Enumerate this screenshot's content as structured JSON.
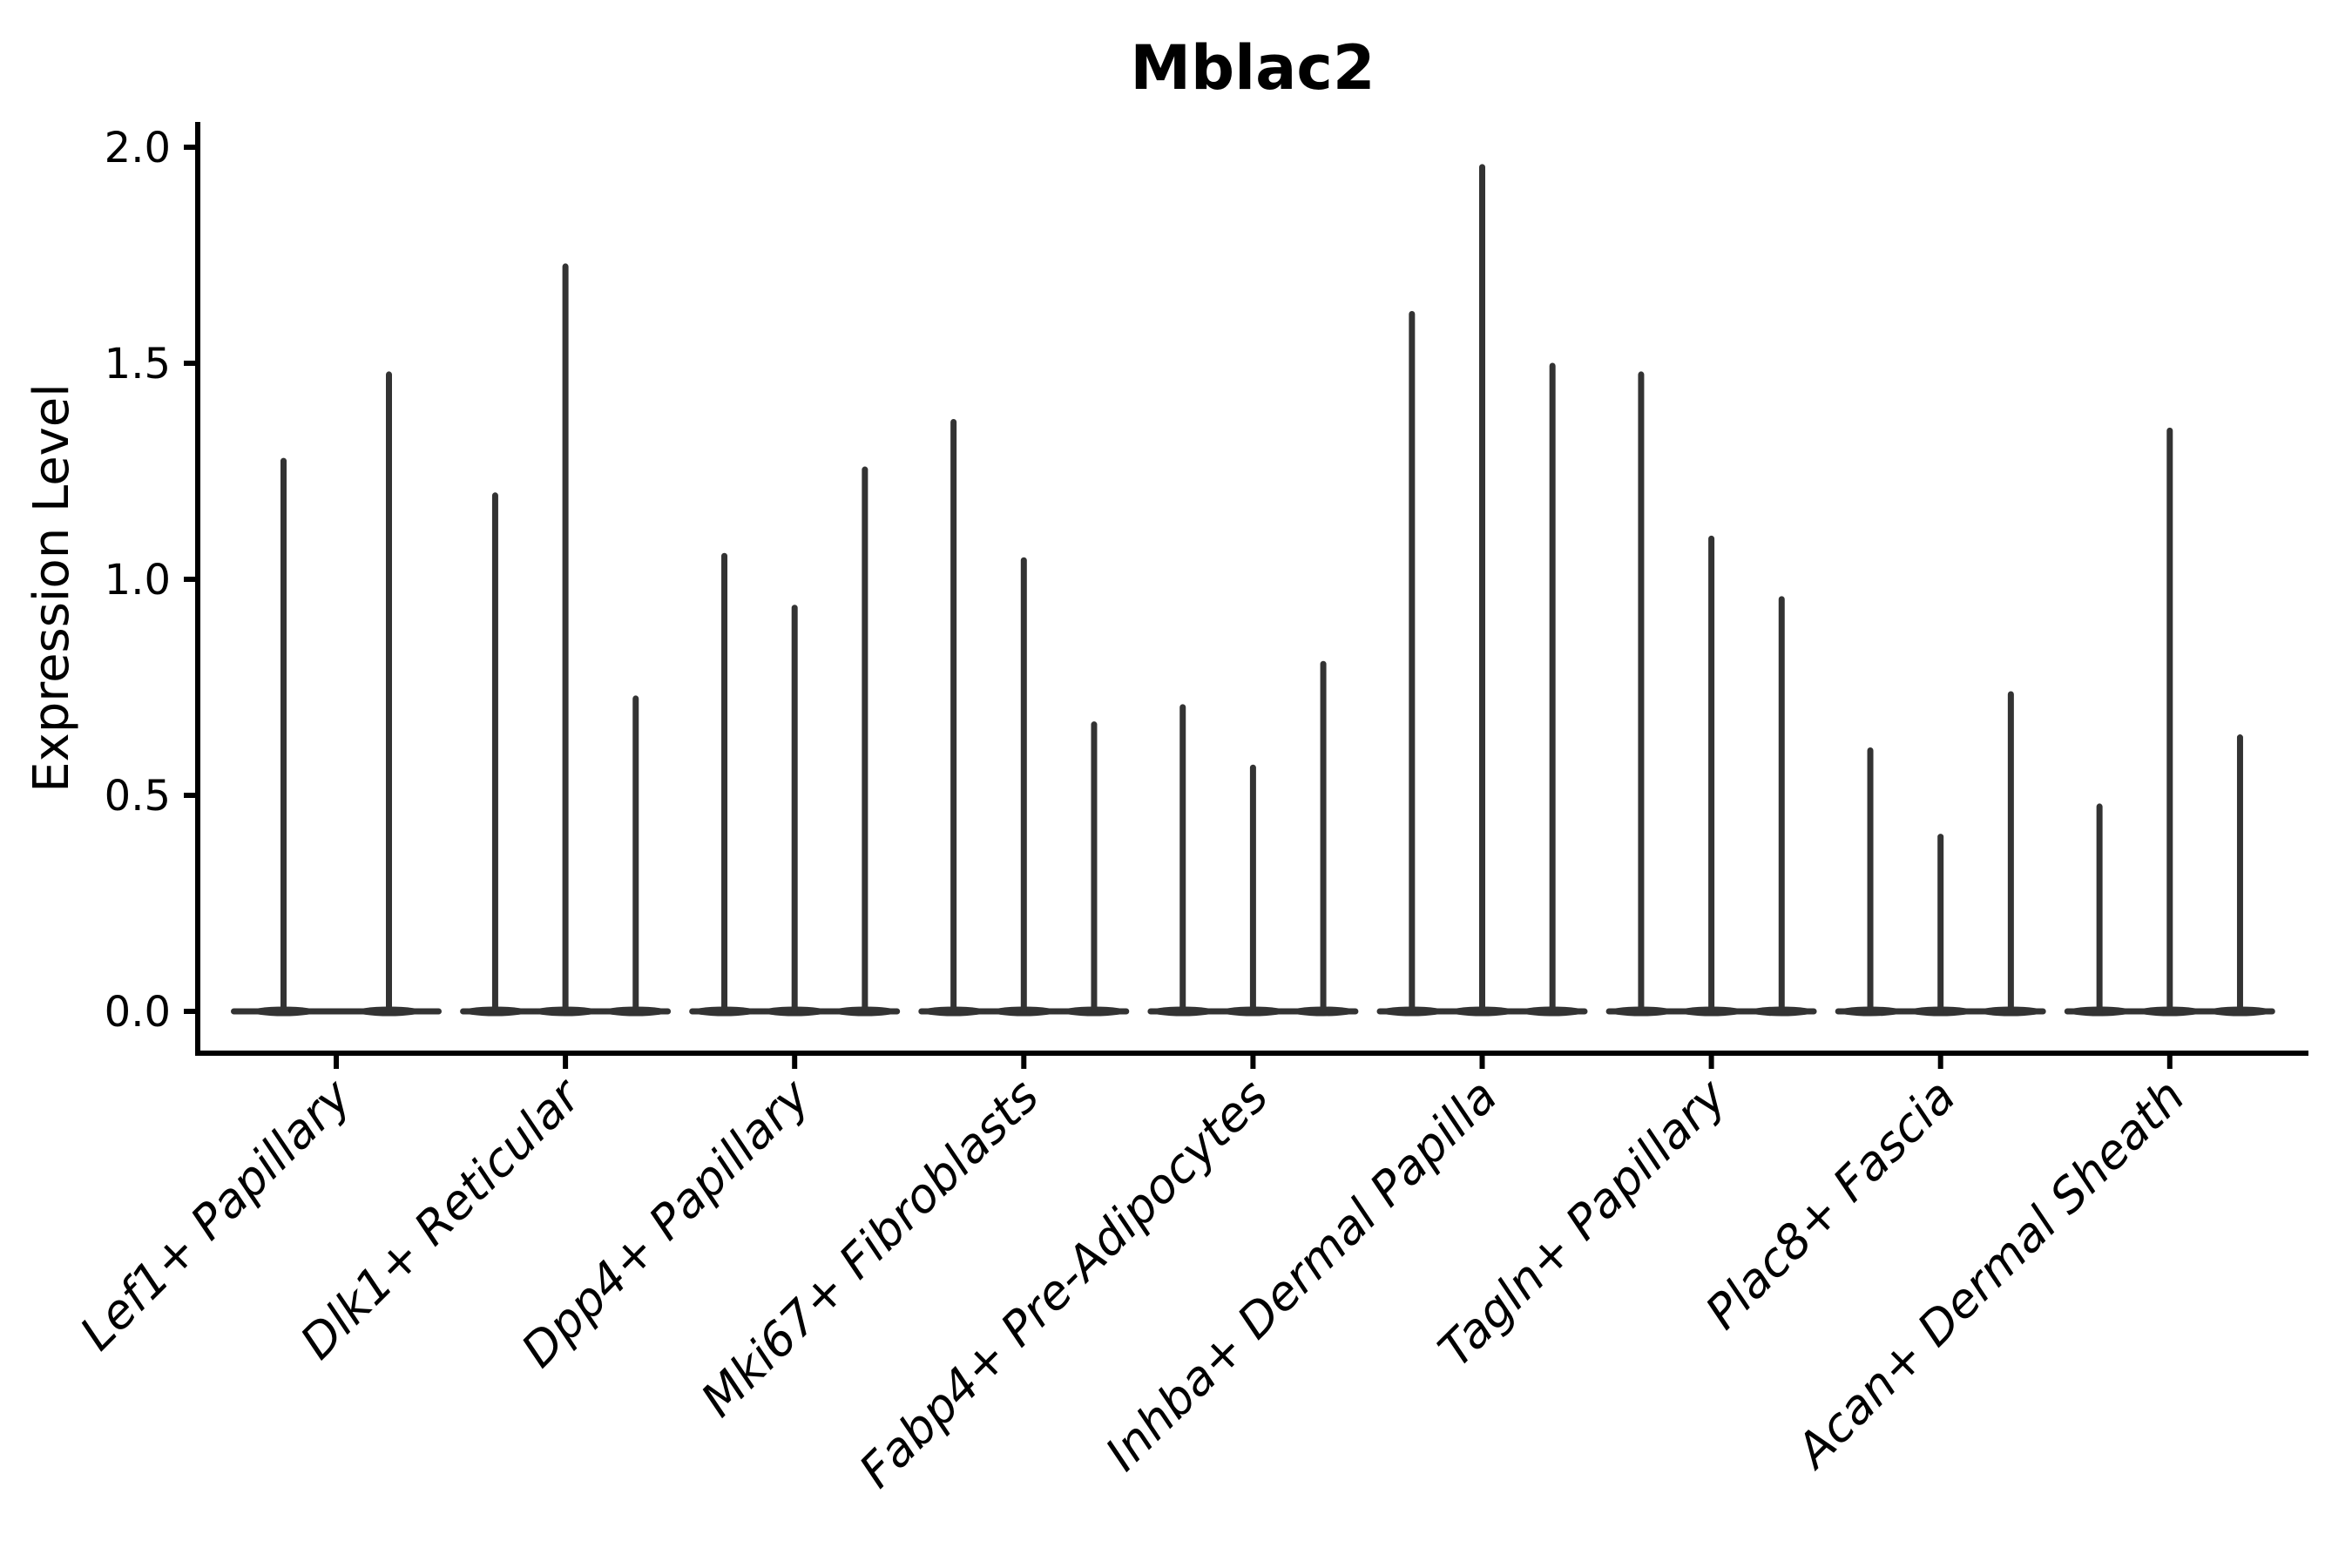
{
  "figure": {
    "title": "Mblac2",
    "ylabel": "Expression Level"
  },
  "chart_data": {
    "type": "violin",
    "title": "Mblac2",
    "xlabel": "",
    "ylabel": "Expression Level",
    "ylim": [
      -0.1,
      2.06
    ],
    "yticks": [
      0.0,
      0.5,
      1.0,
      1.5,
      2.0
    ],
    "ytick_labels": [
      "0.0",
      "0.5",
      "1.0",
      "1.5",
      "2.0"
    ],
    "grid": false,
    "legend": "none",
    "categories": [
      "Lef1+ Papillary",
      "Dlk1+ Reticular",
      "Dpp4+ Papillary",
      "Mki67+ Fibroblasts",
      "Fabp4+ Pre-Adipocytes",
      "Inhba+ Dermal Papilla",
      "Tagln+ Papillary",
      "Plac8+ Fascia",
      "Acan+ Dermal Sheath"
    ],
    "groups": [
      {
        "category": "Lef1+ Papillary",
        "violin_maxima": [
          1.28,
          1.48
        ]
      },
      {
        "category": "Dlk1+ Reticular",
        "violin_maxima": [
          1.2,
          1.73,
          0.73
        ]
      },
      {
        "category": "Dpp4+ Papillary",
        "violin_maxima": [
          1.06,
          0.94,
          1.26
        ]
      },
      {
        "category": "Mki67+ Fibroblasts",
        "violin_maxima": [
          1.37,
          1.05,
          0.67
        ]
      },
      {
        "category": "Fabp4+ Pre-Adipocytes",
        "violin_maxima": [
          0.71,
          0.57,
          0.81
        ]
      },
      {
        "category": "Inhba+ Dermal Papilla",
        "violin_maxima": [
          1.62,
          1.96,
          1.5
        ]
      },
      {
        "category": "Tagln+ Papillary",
        "violin_maxima": [
          1.48,
          1.1,
          0.96
        ]
      },
      {
        "category": "Plac8+ Fascia",
        "violin_maxima": [
          0.61,
          0.41,
          0.74
        ]
      },
      {
        "category": "Acan+ Dermal Sheath",
        "violin_maxima": [
          0.48,
          1.35,
          0.64
        ]
      }
    ],
    "shape_note": "needle-thin violins: flat body at 0 with a single thin spike up to the max expression value"
  },
  "style": {
    "background": "#ffffff",
    "violin_color": "#333333",
    "axis_color": "#000000",
    "text_color": "#000000"
  }
}
